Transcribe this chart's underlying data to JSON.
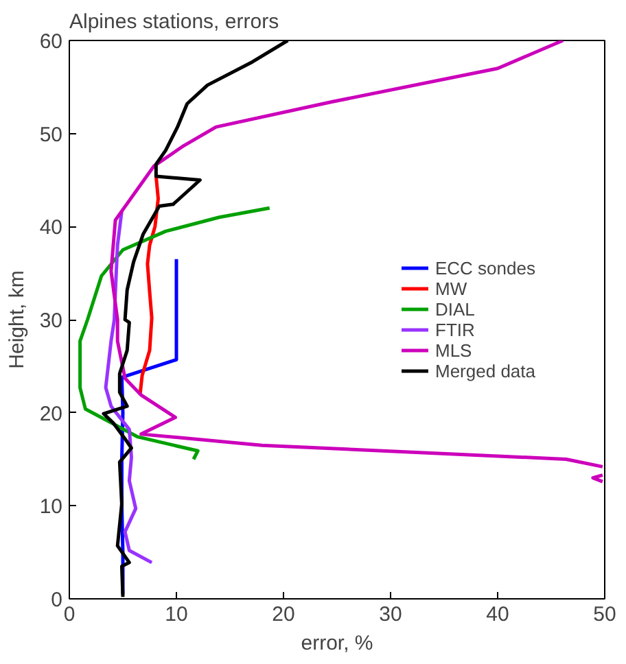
{
  "chart_data": {
    "type": "line",
    "title": "Alpines stations, errors",
    "xlabel": "error, %",
    "ylabel": "Height, km",
    "xlim": [
      0,
      50
    ],
    "ylim": [
      0,
      60
    ],
    "xticks": [
      0,
      10,
      20,
      30,
      40,
      50
    ],
    "yticks": [
      0,
      10,
      20,
      30,
      40,
      50,
      60
    ],
    "grid": false,
    "legend": "right",
    "line_style": "solid",
    "series": [
      {
        "name": "ECC sondes",
        "color": "#0000ff",
        "x": [
          5.0,
          5.0,
          4.9,
          4.9,
          5.0,
          4.9,
          10.0,
          10.0
        ],
        "values": [
          0.5,
          5,
          10,
          15,
          20,
          23.8,
          25.7,
          36.5
        ]
      },
      {
        "name": "MW",
        "color": "#ff0000",
        "x": [
          6.6,
          6.8,
          7.5,
          7.7,
          7.5,
          7.3,
          7.5,
          8.0,
          8.3,
          8.1
        ],
        "values": [
          21.9,
          24.0,
          26.7,
          30.2,
          33,
          36,
          38,
          40,
          43,
          45.4
        ]
      },
      {
        "name": "DIAL",
        "color": "#00a000",
        "x": [
          11.6,
          12.0,
          6.4,
          1.5,
          1.0,
          1.0,
          1.7,
          3.0,
          5.0,
          9.0,
          14.0,
          18.7
        ],
        "values": [
          15.0,
          15.9,
          17.4,
          20.4,
          22.7,
          27.7,
          30,
          34.7,
          37.5,
          39.5,
          41,
          42
        ]
      },
      {
        "name": "FTIR",
        "color": "#9933ff",
        "x": [
          7.7,
          5.6,
          5.2,
          6.2,
          5.6,
          5.8,
          5.6,
          3.9,
          3.4,
          3.9,
          4.2,
          4.3,
          4.5,
          4.9
        ],
        "values": [
          3.9,
          5.2,
          7.2,
          9.7,
          12.7,
          15.2,
          18.2,
          20.7,
          22.7,
          27.7,
          30,
          33,
          38,
          41.7
        ]
      },
      {
        "name": "MLS",
        "color": "#cc00bb",
        "x": [
          49.8,
          48.9,
          49.8,
          null,
          49.8,
          46.4,
          18.0,
          6.7,
          9.9,
          6.7,
          5.2,
          4.5,
          4.5,
          3.9,
          4.3,
          7.9,
          10.7,
          13.7,
          24.5,
          40.0,
          46.1
        ],
        "values": [
          13.3,
          13.0,
          12.6,
          null,
          14.2,
          15.0,
          16.5,
          17.7,
          19.5,
          21.9,
          23.7,
          27.7,
          30,
          35.2,
          40.7,
          46.5,
          48.7,
          50.7,
          53.4,
          57,
          60
        ]
      },
      {
        "name": "Merged data",
        "color": "#000000",
        "x": [
          5.0,
          4.9,
          5.6,
          4.5,
          4.9,
          4.7,
          5.8,
          5.2,
          4.1,
          3.2,
          5.4,
          4.7,
          4.7,
          5.4,
          5.6,
          5.2,
          5.4,
          6.0,
          6.9,
          8.4,
          9.7,
          12.2,
          8.1,
          8.1,
          9.0,
          10.1,
          11.0,
          12.9,
          17.1,
          20.4
        ],
        "values": [
          0.2,
          3.5,
          3.9,
          5.7,
          10.2,
          14.7,
          16.2,
          17.2,
          18.9,
          19.9,
          20.7,
          22.2,
          24.2,
          26.7,
          29.7,
          30,
          33.2,
          36.2,
          39.2,
          42.2,
          42.4,
          45.0,
          45.4,
          46.7,
          48.2,
          50.7,
          53.2,
          55.2,
          57.7,
          60
        ]
      }
    ]
  }
}
